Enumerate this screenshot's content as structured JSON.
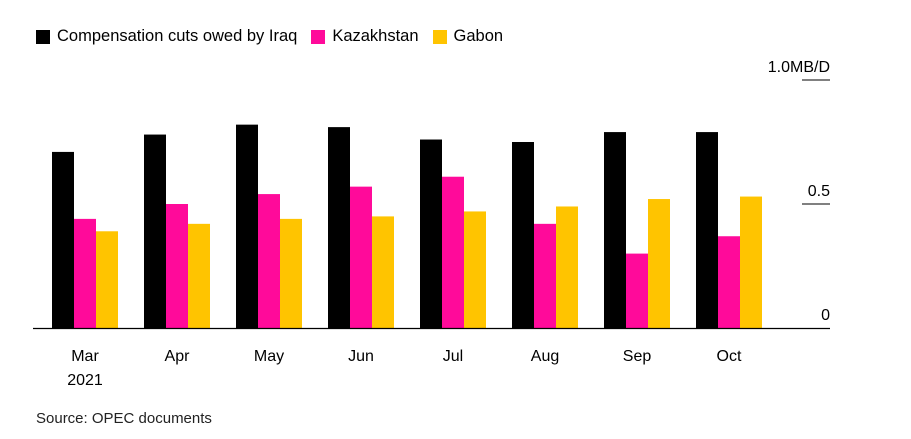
{
  "legend": {
    "items": [
      {
        "label": "Compensation cuts owed by Iraq",
        "color": "#000000"
      },
      {
        "label": "Kazakhstan",
        "color": "#ff0a9a"
      },
      {
        "label": "Gabon",
        "color": "#ffc400"
      }
    ]
  },
  "chart_data": {
    "type": "bar",
    "categories": [
      "Mar",
      "Apr",
      "May",
      "Jun",
      "Jul",
      "Aug",
      "Sep",
      "Oct"
    ],
    "category_sublabels": [
      "2021",
      "",
      "",
      "",
      "",
      "",
      "",
      ""
    ],
    "series": [
      {
        "name": "Compensation cuts owed by Iraq",
        "color": "#000000",
        "values": [
          0.71,
          0.78,
          0.82,
          0.81,
          0.76,
          0.75,
          0.79,
          0.79
        ]
      },
      {
        "name": "Kazakhstan",
        "color": "#ff0a9a",
        "values": [
          0.44,
          0.5,
          0.54,
          0.57,
          0.61,
          0.42,
          0.3,
          0.37
        ]
      },
      {
        "name": "Gabon",
        "color": "#ffc400",
        "values": [
          0.39,
          0.42,
          0.44,
          0.45,
          0.47,
          0.49,
          0.52,
          0.53
        ]
      }
    ],
    "yticks": [
      {
        "value": 1.0,
        "label": "1.0MB/D"
      },
      {
        "value": 0.5,
        "label": "0.5"
      },
      {
        "value": 0,
        "label": "0"
      }
    ],
    "ylim": [
      0,
      1.0
    ],
    "unit": "MB/D",
    "legend_position": "top-left"
  },
  "footer": {
    "source": "Source: OPEC documents"
  }
}
